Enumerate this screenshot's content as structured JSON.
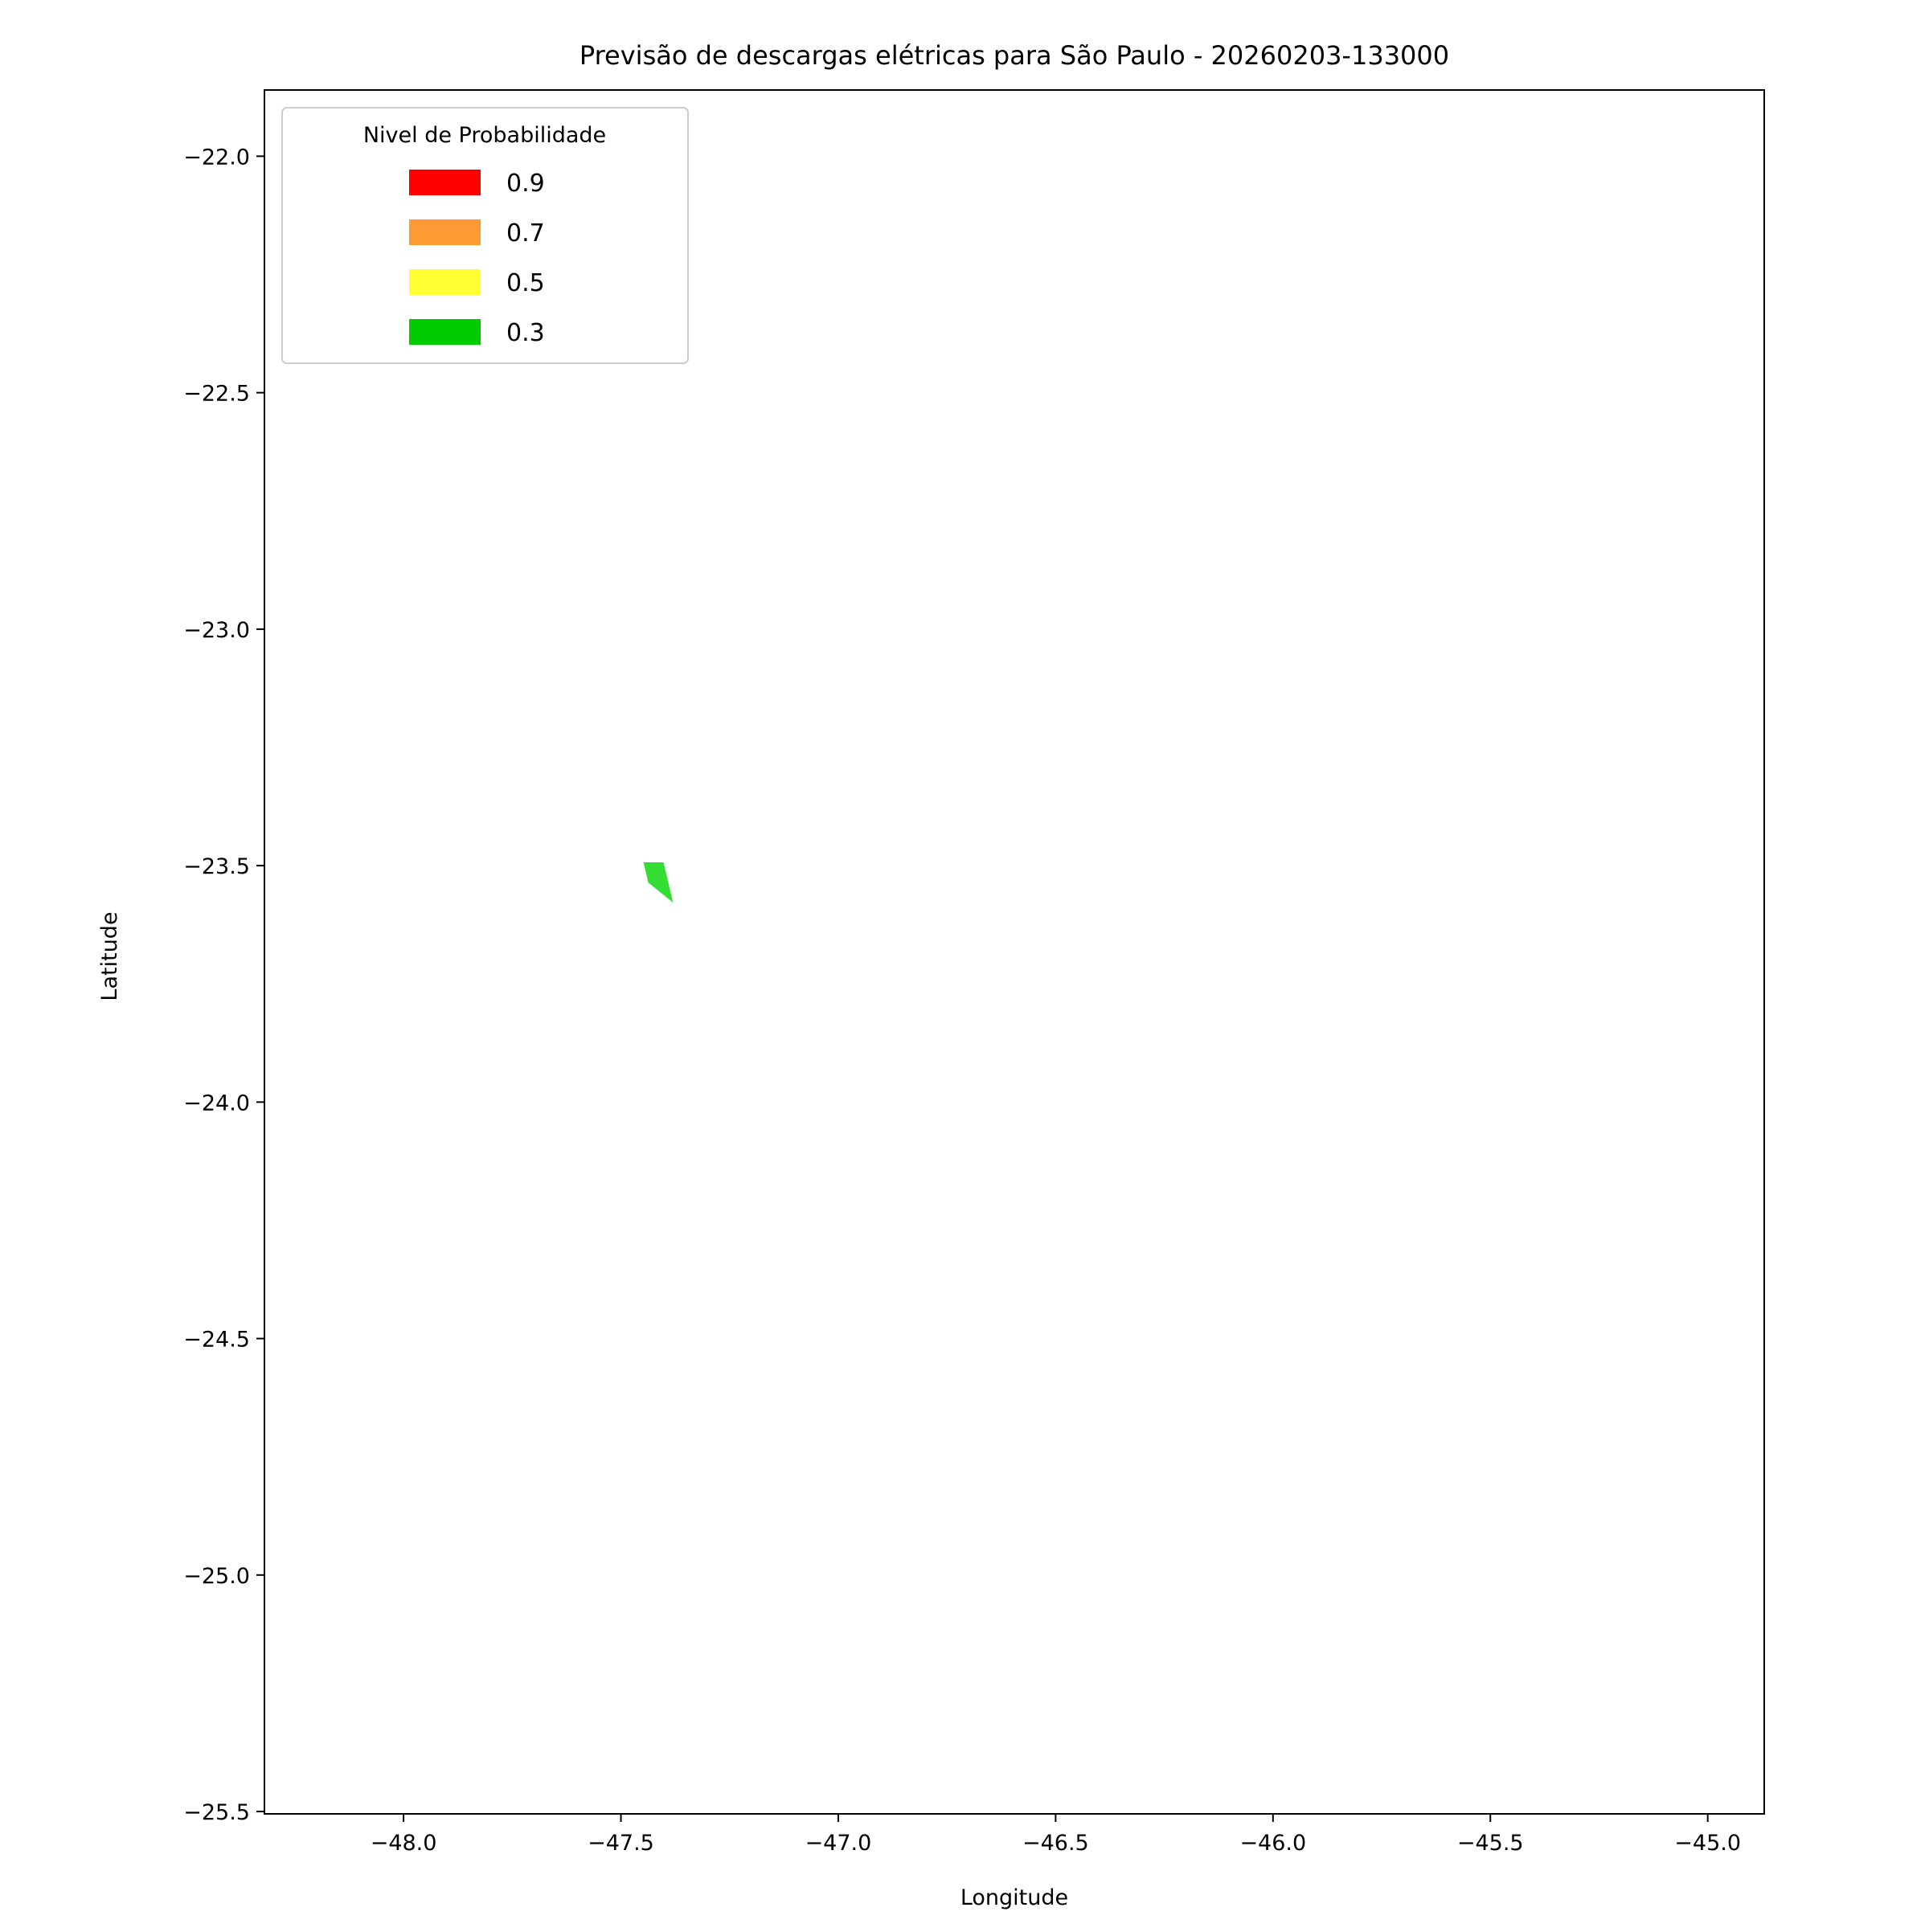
{
  "chart_data": {
    "type": "map",
    "title": "Previsão de descargas elétricas para São Paulo - 20260203-133000",
    "xlabel": "Longitude",
    "ylabel": "Latitude",
    "xlim": [
      -48.32,
      -44.87
    ],
    "ylim": [
      -25.505,
      -21.86
    ],
    "xticks": [
      -48.0,
      -47.5,
      -47.0,
      -46.5,
      -46.0,
      -45.5,
      -45.0
    ],
    "xtick_labels": [
      "−48.0",
      "−47.5",
      "−47.0",
      "−46.5",
      "−46.0",
      "−45.5",
      "−45.0"
    ],
    "yticks": [
      -22.0,
      -22.5,
      -23.0,
      -23.5,
      -24.0,
      -24.5,
      -25.0,
      -25.5
    ],
    "ytick_labels": [
      "−22.0",
      "−22.5",
      "−23.0",
      "−23.5",
      "−24.0",
      "−24.5",
      "−25.0",
      "−25.5"
    ],
    "grid": false,
    "legend": {
      "title": "Nivel de Probabilidade",
      "placement": "top-left",
      "entries": [
        {
          "label": "0.9",
          "color": "#ff0000"
        },
        {
          "label": "0.7",
          "color": "#ff9933"
        },
        {
          "label": "0.5",
          "color": "#ffff33"
        },
        {
          "label": "0.3",
          "color": "#00cc00"
        }
      ]
    },
    "polygons": [
      {
        "level": "0.3",
        "color": "#33dd33",
        "coords": [
          [
            -47.448,
            -23.493
          ],
          [
            -47.402,
            -23.493
          ],
          [
            -47.38,
            -23.578
          ],
          [
            -47.437,
            -23.536
          ]
        ]
      }
    ]
  }
}
